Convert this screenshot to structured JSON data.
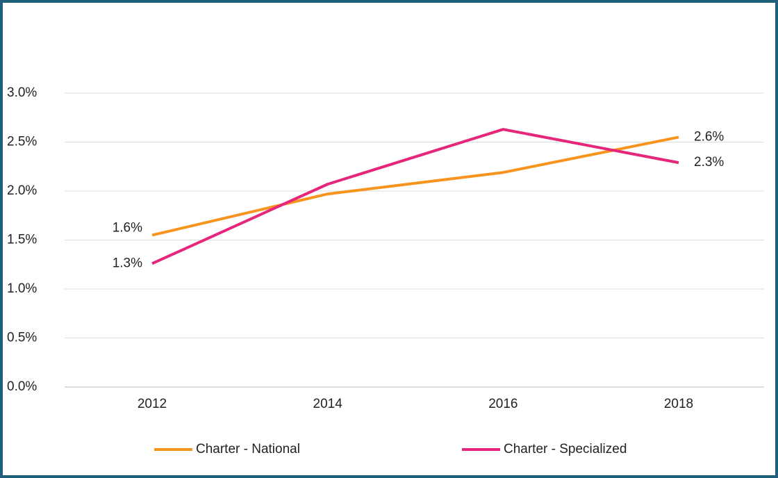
{
  "chart_data": {
    "type": "line",
    "categories": [
      "2012",
      "2014",
      "2016",
      "2018"
    ],
    "series": [
      {
        "name": "Charter - National",
        "color": "#f7941d",
        "values": [
          1.55,
          1.97,
          2.19,
          2.55
        ],
        "value_labels": [
          "1.6%",
          null,
          null,
          "2.6%"
        ]
      },
      {
        "name": "Charter - Specialized",
        "color": "#e6267a",
        "values": [
          1.26,
          2.07,
          2.63,
          2.29
        ],
        "value_labels": [
          "1.3%",
          null,
          null,
          "2.3%"
        ]
      }
    ],
    "ylim": [
      0,
      3
    ],
    "yticks": [
      {
        "value": 0,
        "label": "0.0%"
      },
      {
        "value": 0.5,
        "label": "0.5%"
      },
      {
        "value": 1,
        "label": "1.0%"
      },
      {
        "value": 1.5,
        "label": "1.5%"
      },
      {
        "value": 2,
        "label": "2.0%"
      },
      {
        "value": 2.5,
        "label": "2.5%"
      },
      {
        "value": 3,
        "label": "3.0%"
      }
    ],
    "grid": true,
    "legend": "bottom"
  }
}
